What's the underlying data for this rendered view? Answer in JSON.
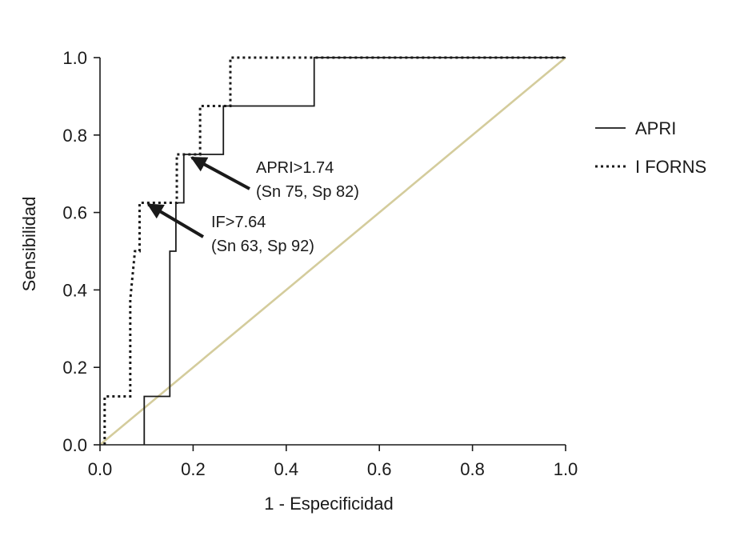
{
  "chart_data": {
    "type": "line",
    "xlabel": "1 - Especificidad",
    "ylabel": "Sensibilidad",
    "xlim": [
      0,
      1
    ],
    "ylim": [
      0,
      1
    ],
    "xticks": [
      "0.0",
      "0.2",
      "0.4",
      "0.6",
      "0.8",
      "1.0"
    ],
    "yticks": [
      "0.0",
      "0.2",
      "0.4",
      "0.6",
      "0.8",
      "1.0"
    ],
    "grid": false,
    "legend_position": "right",
    "series": [
      {
        "name": "APRI",
        "style": "solid",
        "color": "#1a1a1a",
        "x": [
          0.095,
          0.095,
          0.15,
          0.15,
          0.163,
          0.163,
          0.18,
          0.18,
          0.265,
          0.265,
          0.46,
          0.46,
          1.0
        ],
        "y": [
          0.0,
          0.125,
          0.125,
          0.5,
          0.5,
          0.625,
          0.625,
          0.75,
          0.75,
          0.875,
          0.875,
          1.0,
          1.0
        ]
      },
      {
        "name": "I FORNS",
        "style": "dotted",
        "color": "#1a1a1a",
        "x": [
          0.01,
          0.01,
          0.065,
          0.065,
          0.075,
          0.075,
          0.085,
          0.085,
          0.165,
          0.165,
          0.215,
          0.215,
          0.28,
          0.28,
          1.0
        ],
        "y": [
          0.0,
          0.125,
          0.125,
          0.375,
          0.5,
          0.5,
          0.5,
          0.625,
          0.625,
          0.75,
          0.75,
          0.875,
          0.875,
          1.0,
          1.0
        ]
      },
      {
        "name": "",
        "style": "reference",
        "color": "#d4cc9c",
        "x": [
          0.0,
          1.0
        ],
        "y": [
          0.0,
          1.0
        ]
      }
    ],
    "annotations": [
      {
        "line1": "APRI>1.74",
        "line2": "(Sn 75, Sp 82)",
        "point": [
          0.18,
          0.75
        ]
      },
      {
        "line1": "IF>7.64",
        "line2": "(Sn 63, Sp 92)",
        "point": [
          0.09,
          0.625
        ]
      }
    ]
  }
}
